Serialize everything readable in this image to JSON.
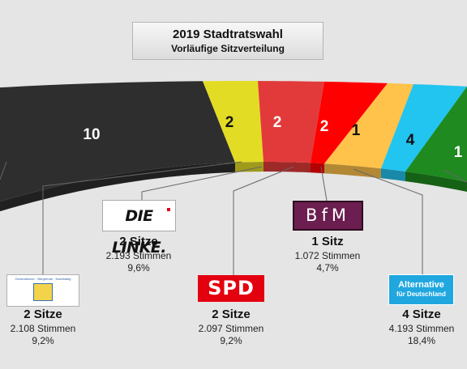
{
  "title": "2019 Stadtratswahl",
  "subtitle": "Vorläufige Sitzverteilung",
  "chart_data": {
    "type": "parliament-arc",
    "title": "2019 Stadtratswahl",
    "subtitle": "Vorläufige Sitzverteilung",
    "segments": [
      {
        "seats_label": "10",
        "color": "#2e2e2e"
      },
      {
        "seats_label": "2",
        "color": "#e3dc25"
      },
      {
        "seats_label": "2",
        "color": "#e23a3a"
      },
      {
        "seats_label": "2",
        "color": "#ff0000"
      },
      {
        "seats_label": "1",
        "color": "#ffc24a"
      },
      {
        "seats_label": "4",
        "color": "#22c4f0"
      },
      {
        "seats_label": "1",
        "color": "#1f8a1f"
      }
    ]
  },
  "parties": [
    {
      "logo_text": "Generationen · Bürgernah · Nachhaltig",
      "seats": "2 Sitze",
      "votes": "2.108 Stimmen",
      "pct": "9,2%"
    },
    {
      "logo_text": "DIE LINKE.",
      "seats": "2 Sitze",
      "votes": "2.193 Stimmen",
      "pct": "9,6%"
    },
    {
      "logo_text": "SPD",
      "seats": "2 Sitze",
      "votes": "2.097 Stimmen",
      "pct": "9,2%"
    },
    {
      "logo_text": "BfM",
      "seats": "1 Sitz",
      "votes": "1.072 Stimmen",
      "pct": "4,7%"
    },
    {
      "logo_text_1": "Alternative",
      "logo_text_2": "für Deutschland",
      "seats": "4 Sitze",
      "votes": "4.193 Stimmen",
      "pct": "18,4%"
    }
  ]
}
